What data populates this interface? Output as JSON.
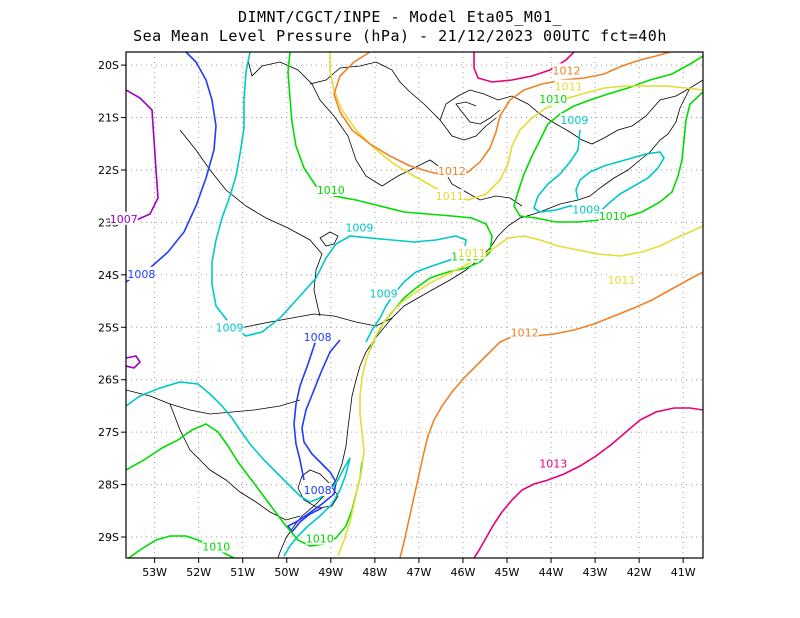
{
  "header": {
    "title_line1": "DIMNT/CGCT/INPE -  Model Eta05_M01_",
    "title_line2": "Sea Mean Level Pressure (hPa) - 21/12/2023 00UTC fct=40h"
  },
  "map": {
    "lon_range": [
      -53.65,
      -40.55
    ],
    "lat_range": [
      -29.4,
      -19.75
    ],
    "lon_ticks": [
      {
        "value": -53,
        "label": "53W"
      },
      {
        "value": -52,
        "label": "52W"
      },
      {
        "value": -51,
        "label": "51W"
      },
      {
        "value": -50,
        "label": "50W"
      },
      {
        "value": -49,
        "label": "49W"
      },
      {
        "value": -48,
        "label": "48W"
      },
      {
        "value": -47,
        "label": "47W"
      },
      {
        "value": -46,
        "label": "46W"
      },
      {
        "value": -45,
        "label": "45W"
      },
      {
        "value": -44,
        "label": "44W"
      },
      {
        "value": -43,
        "label": "43W"
      },
      {
        "value": -42,
        "label": "42W"
      },
      {
        "value": -41,
        "label": "41W"
      }
    ],
    "lat_ticks": [
      {
        "value": -20,
        "label": "20S"
      },
      {
        "value": -21,
        "label": "21S"
      },
      {
        "value": -22,
        "label": "22S"
      },
      {
        "value": -23,
        "label": "23S"
      },
      {
        "value": -24,
        "label": "24S"
      },
      {
        "value": -25,
        "label": "25S"
      },
      {
        "value": -26,
        "label": "26S"
      },
      {
        "value": -27,
        "label": "27S"
      },
      {
        "value": -28,
        "label": "28S"
      },
      {
        "value": -29,
        "label": "29S"
      }
    ],
    "grid": "dotted",
    "contour_colors": {
      "1007": "#a000c8",
      "1008": "#1e3cff",
      "1009": "#00c8c8",
      "1010": "#00dc00",
      "1011": "#e6dc32",
      "1012": "#f08228",
      "1013": "#e6007a"
    },
    "contour_labels": [
      {
        "text": "1007",
        "lon": -53.7,
        "lat": -22.95
      },
      {
        "text": "1008",
        "lon": -53.3,
        "lat": -24.0
      },
      {
        "text": "1008",
        "lon": -49.3,
        "lat": -25.2
      },
      {
        "text": "1008",
        "lon": -49.3,
        "lat": -28.12
      },
      {
        "text": "1009",
        "lon": -51.3,
        "lat": -25.02
      },
      {
        "text": "1009",
        "lon": -48.35,
        "lat": -23.12
      },
      {
        "text": "1009",
        "lon": -47.8,
        "lat": -24.37
      },
      {
        "text": "1009",
        "lon": -43.47,
        "lat": -21.07
      },
      {
        "text": "1009",
        "lon": -43.2,
        "lat": -22.77
      },
      {
        "text": "1010",
        "lon": -49.0,
        "lat": -22.4
      },
      {
        "text": "1010",
        "lon": -45.95,
        "lat": -23.67
      },
      {
        "text": "1010",
        "lon": -43.95,
        "lat": -20.67
      },
      {
        "text": "1010",
        "lon": -42.6,
        "lat": -22.9
      },
      {
        "text": "1010",
        "lon": -51.6,
        "lat": -29.2
      },
      {
        "text": "1010",
        "lon": -49.25,
        "lat": -29.05
      },
      {
        "text": "1011",
        "lon": -45.8,
        "lat": -23.6
      },
      {
        "text": "1011",
        "lon": -46.3,
        "lat": -22.52
      },
      {
        "text": "1011",
        "lon": -43.6,
        "lat": -20.43
      },
      {
        "text": "1011",
        "lon": -42.4,
        "lat": -24.12
      },
      {
        "text": "1012",
        "lon": -46.25,
        "lat": -22.04
      },
      {
        "text": "1012",
        "lon": -43.65,
        "lat": -20.12
      },
      {
        "text": "1012",
        "lon": -44.6,
        "lat": -25.12
      },
      {
        "text": "1013",
        "lon": -43.95,
        "lat": -27.62
      }
    ]
  }
}
